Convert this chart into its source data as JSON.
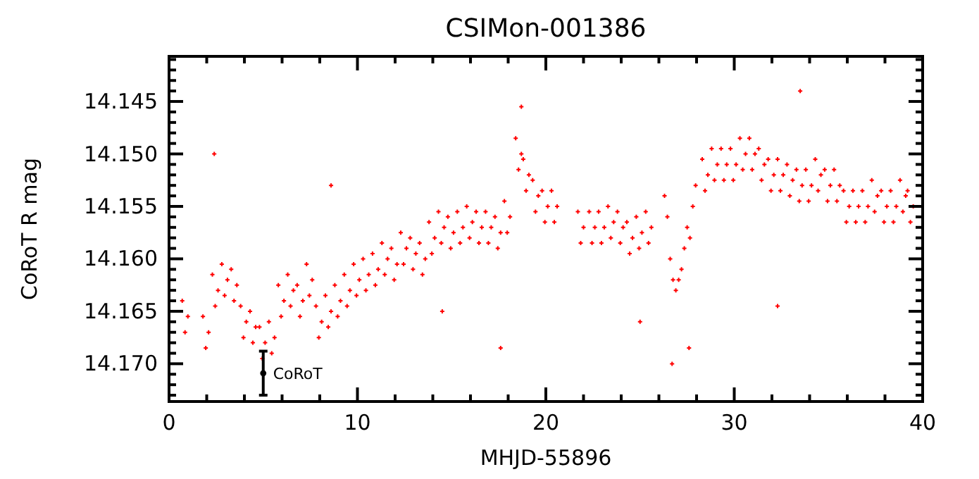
{
  "chart_data": {
    "type": "scatter",
    "title": "CSIMon-001386",
    "xlabel": "MHJD-55896",
    "ylabel": "CoRoT R mag",
    "marker": "cross",
    "grid": false,
    "xlim": [
      0,
      40
    ],
    "ylim": [
      14.1736,
      14.1407
    ],
    "xticks": [
      0,
      {
        "value": 2,
        "label": null
      },
      {
        "value": 4,
        "label": null
      },
      {
        "value": 6,
        "label": null
      },
      {
        "value": 8,
        "label": null
      },
      10,
      {
        "value": 12,
        "label": null
      },
      {
        "value": 14,
        "label": null
      },
      {
        "value": 16,
        "label": null
      },
      {
        "value": 18,
        "label": null
      },
      20,
      {
        "value": 22,
        "label": null
      },
      {
        "value": 24,
        "label": null
      },
      {
        "value": 26,
        "label": null
      },
      {
        "value": 28,
        "label": null
      },
      30,
      {
        "value": 32,
        "label": null
      },
      {
        "value": 34,
        "label": null
      },
      {
        "value": 36,
        "label": null
      },
      {
        "value": 38,
        "label": null
      },
      40
    ],
    "yticks": [
      {
        "value": 14.141,
        "label": null
      },
      {
        "value": 14.142,
        "label": null
      },
      {
        "value": 14.143,
        "label": null
      },
      {
        "value": 14.144,
        "label": null
      },
      14.145,
      {
        "value": 14.146,
        "label": null
      },
      {
        "value": 14.147,
        "label": null
      },
      {
        "value": 14.148,
        "label": null
      },
      {
        "value": 14.149,
        "label": null
      },
      {
        "value": 14.15,
        "label": "14.150"
      },
      {
        "value": 14.151,
        "label": null
      },
      {
        "value": 14.152,
        "label": null
      },
      {
        "value": 14.153,
        "label": null
      },
      {
        "value": 14.154,
        "label": null
      },
      14.155,
      {
        "value": 14.156,
        "label": null
      },
      {
        "value": 14.157,
        "label": null
      },
      {
        "value": 14.158,
        "label": null
      },
      {
        "value": 14.159,
        "label": null
      },
      {
        "value": 14.16,
        "label": "14.160"
      },
      {
        "value": 14.161,
        "label": null
      },
      {
        "value": 14.162,
        "label": null
      },
      {
        "value": 14.163,
        "label": null
      },
      {
        "value": 14.164,
        "label": null
      },
      14.165,
      {
        "value": 14.166,
        "label": null
      },
      {
        "value": 14.167,
        "label": null
      },
      {
        "value": 14.168,
        "label": null
      },
      {
        "value": 14.169,
        "label": null
      },
      {
        "value": 14.17,
        "label": "14.170"
      },
      {
        "value": 14.171,
        "label": null
      },
      {
        "value": 14.172,
        "label": null
      },
      {
        "value": 14.173,
        "label": null
      }
    ],
    "series": [
      {
        "color": "#ff0000",
        "x": [
          0.7,
          0.85,
          1.0,
          1.8,
          1.95,
          2.1,
          2.3,
          2.45,
          2.6,
          2.8,
          2.95,
          3.1,
          3.3,
          3.45,
          3.6,
          3.8,
          3.95,
          4.1,
          4.3,
          4.45,
          4.6,
          4.8,
          4.95,
          5.1,
          5.3,
          5.45,
          5.6,
          5.8,
          5.95,
          6.1,
          6.3,
          6.45,
          6.6,
          6.8,
          6.95,
          7.1,
          7.3,
          7.45,
          7.6,
          7.8,
          7.95,
          8.1,
          8.3,
          8.45,
          8.6,
          8.8,
          8.95,
          9.1,
          9.3,
          9.45,
          9.6,
          9.8,
          9.95,
          10.1,
          10.3,
          10.45,
          10.6,
          10.8,
          10.95,
          11.1,
          11.3,
          11.45,
          11.6,
          11.8,
          11.95,
          12.1,
          12.3,
          12.45,
          12.6,
          12.8,
          12.95,
          13.1,
          13.3,
          13.45,
          13.6,
          13.8,
          13.95,
          14.1,
          14.3,
          14.45,
          14.6,
          14.8,
          14.95,
          15.1,
          15.3,
          15.45,
          15.6,
          15.8,
          15.95,
          16.1,
          16.3,
          16.45,
          16.6,
          16.8,
          16.95,
          17.1,
          17.3,
          17.45,
          17.6,
          17.8,
          17.95,
          18.1,
          18.4,
          18.55,
          18.7,
          18.8,
          18.95,
          19.1,
          19.3,
          19.45,
          19.6,
          19.8,
          19.95,
          20.1,
          20.3,
          20.45,
          20.6,
          21.7,
          21.85,
          22.0,
          22.3,
          22.45,
          22.6,
          22.8,
          22.95,
          23.1,
          23.3,
          23.45,
          23.6,
          23.8,
          23.95,
          24.1,
          24.3,
          24.45,
          24.6,
          24.8,
          24.95,
          25.1,
          25.3,
          25.45,
          25.6,
          26.3,
          26.45,
          26.6,
          26.75,
          26.9,
          27.05,
          27.2,
          27.35,
          27.5,
          27.65,
          27.8,
          27.95,
          28.3,
          28.45,
          28.6,
          28.8,
          28.95,
          29.1,
          29.3,
          29.45,
          29.6,
          29.8,
          29.95,
          30.1,
          30.3,
          30.45,
          30.6,
          30.8,
          30.95,
          31.1,
          31.3,
          31.45,
          31.6,
          31.8,
          31.95,
          32.1,
          32.3,
          32.45,
          32.6,
          32.8,
          32.95,
          33.1,
          33.3,
          33.45,
          33.6,
          33.8,
          33.95,
          34.1,
          34.3,
          34.45,
          34.6,
          34.8,
          34.95,
          35.1,
          35.3,
          35.45,
          35.6,
          35.8,
          35.95,
          36.1,
          36.3,
          36.45,
          36.6,
          36.8,
          36.95,
          37.1,
          37.3,
          37.45,
          37.6,
          37.8,
          37.95,
          38.1,
          38.3,
          38.45,
          38.6,
          38.8,
          38.95,
          39.1,
          39.2,
          39.35,
          39.5,
          2.4,
          8.6,
          14.5,
          17.6,
          18.7,
          25.0,
          26.7,
          27.6,
          33.5,
          32.3
        ],
        "values": [
          14.164,
          14.167,
          14.1655,
          14.1655,
          14.1685,
          14.167,
          14.1615,
          14.1645,
          14.163,
          14.1605,
          14.1635,
          14.162,
          14.161,
          14.164,
          14.1625,
          14.1645,
          14.1675,
          14.166,
          14.165,
          14.168,
          14.1665,
          14.1665,
          14.1695,
          14.168,
          14.166,
          14.169,
          14.1675,
          14.1625,
          14.1655,
          14.164,
          14.1615,
          14.1645,
          14.163,
          14.1625,
          14.1655,
          14.164,
          14.1605,
          14.1635,
          14.162,
          14.1645,
          14.1675,
          14.166,
          14.1635,
          14.1665,
          14.165,
          14.1625,
          14.1655,
          14.164,
          14.1615,
          14.1645,
          14.163,
          14.1605,
          14.1635,
          14.162,
          14.16,
          14.163,
          14.1615,
          14.1595,
          14.1625,
          14.161,
          14.1585,
          14.1615,
          14.16,
          14.159,
          14.162,
          14.1605,
          14.1575,
          14.1605,
          14.159,
          14.158,
          14.161,
          14.1595,
          14.1585,
          14.1615,
          14.16,
          14.1565,
          14.1595,
          14.158,
          14.1555,
          14.1585,
          14.157,
          14.156,
          14.159,
          14.1575,
          14.1555,
          14.1585,
          14.157,
          14.155,
          14.158,
          14.1565,
          14.1555,
          14.1585,
          14.157,
          14.1555,
          14.1585,
          14.157,
          14.156,
          14.159,
          14.1575,
          14.1545,
          14.1575,
          14.156,
          14.1485,
          14.1515,
          14.15,
          14.1505,
          14.1535,
          14.152,
          14.1525,
          14.1555,
          14.154,
          14.1535,
          14.1565,
          14.155,
          14.1535,
          14.1565,
          14.155,
          14.1555,
          14.1585,
          14.157,
          14.1555,
          14.1585,
          14.157,
          14.1555,
          14.1585,
          14.157,
          14.155,
          14.158,
          14.1565,
          14.1555,
          14.1585,
          14.157,
          14.1565,
          14.1595,
          14.158,
          14.156,
          14.159,
          14.1575,
          14.1555,
          14.1585,
          14.157,
          14.154,
          14.156,
          14.16,
          14.162,
          14.163,
          14.162,
          14.161,
          14.159,
          14.157,
          14.158,
          14.155,
          14.153,
          14.1505,
          14.1535,
          14.152,
          14.1495,
          14.1525,
          14.151,
          14.1495,
          14.1525,
          14.151,
          14.1495,
          14.1525,
          14.151,
          14.1485,
          14.1515,
          14.15,
          14.1485,
          14.1515,
          14.15,
          14.1495,
          14.1525,
          14.151,
          14.1505,
          14.1535,
          14.152,
          14.1505,
          14.1535,
          14.152,
          14.151,
          14.154,
          14.1525,
          14.1515,
          14.1545,
          14.153,
          14.1515,
          14.1545,
          14.153,
          14.1505,
          14.1535,
          14.152,
          14.1515,
          14.1545,
          14.153,
          14.1515,
          14.1545,
          14.153,
          14.1535,
          14.1565,
          14.155,
          14.1535,
          14.1565,
          14.155,
          14.1535,
          14.1565,
          14.155,
          14.1525,
          14.1555,
          14.154,
          14.1535,
          14.1565,
          14.155,
          14.1535,
          14.1565,
          14.155,
          14.1525,
          14.1555,
          14.154,
          14.1535,
          14.1565,
          14.155,
          14.15,
          14.153,
          14.165,
          14.1685,
          14.1455,
          14.166,
          14.17,
          14.1685,
          14.144,
          14.1645
        ]
      },
      {
        "name": "CoRoT",
        "color": "#000000",
        "type": "scatter",
        "marker": "circle",
        "x": [
          5
        ],
        "values": [
          14.1709
        ],
        "errors": [
          0.0021
        ]
      }
    ]
  }
}
